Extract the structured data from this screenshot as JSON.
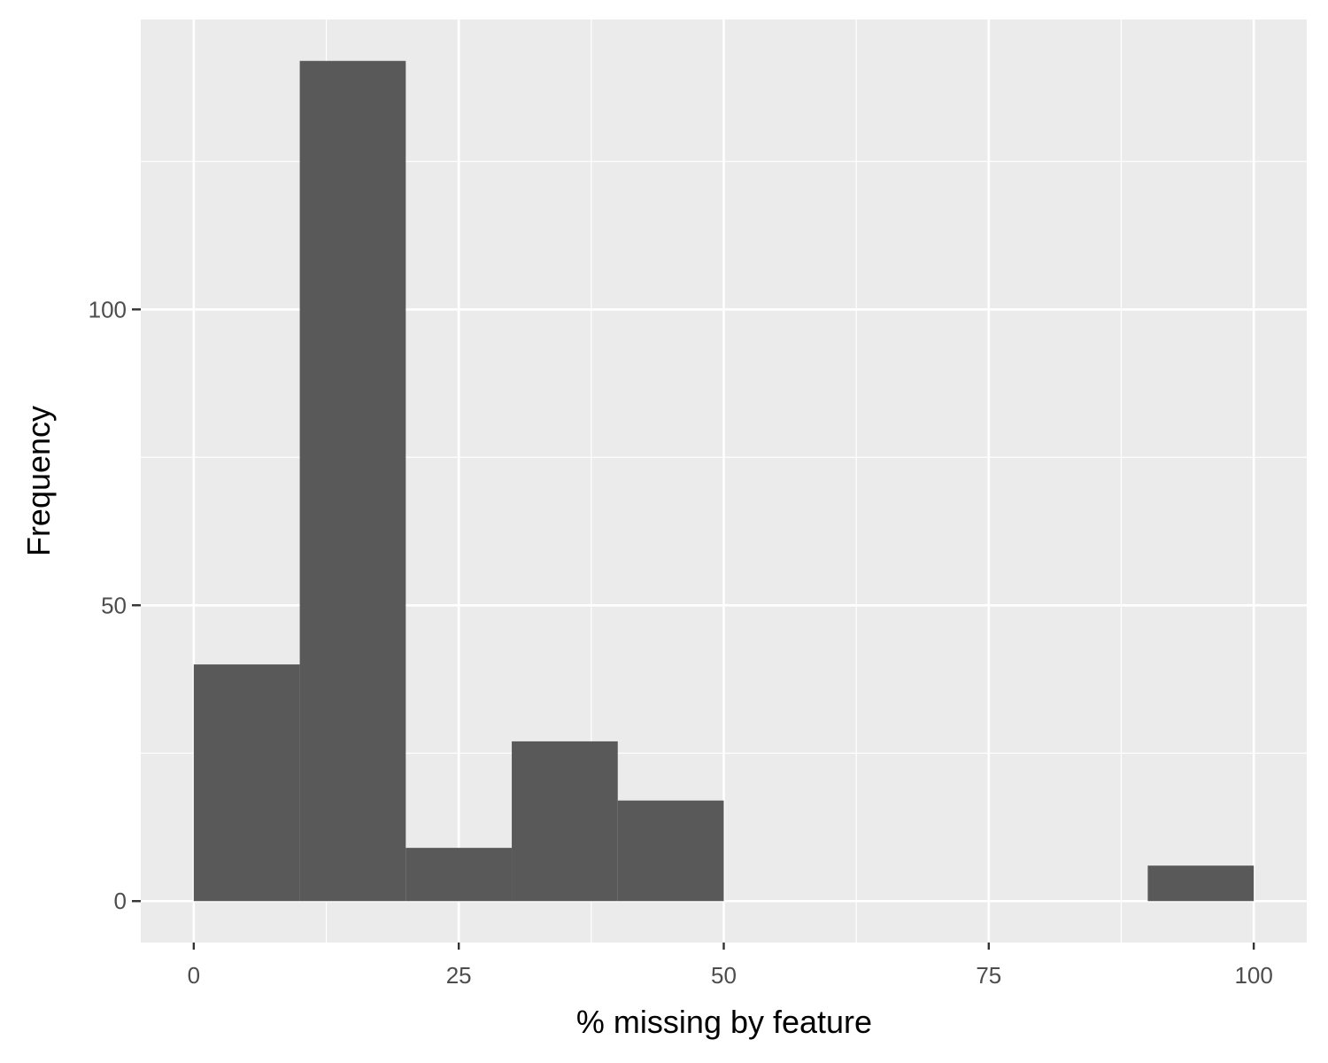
{
  "chart_data": {
    "type": "bar",
    "subtype": "histogram",
    "title": "",
    "xlabel": "% missing by feature",
    "ylabel": "Frequency",
    "bins": [
      {
        "x0": 0,
        "x1": 10,
        "count": 40
      },
      {
        "x0": 10,
        "x1": 20,
        "count": 142
      },
      {
        "x0": 20,
        "x1": 30,
        "count": 9
      },
      {
        "x0": 30,
        "x1": 40,
        "count": 27
      },
      {
        "x0": 40,
        "x1": 50,
        "count": 17
      },
      {
        "x0": 50,
        "x1": 60,
        "count": 0
      },
      {
        "x0": 60,
        "x1": 70,
        "count": 0
      },
      {
        "x0": 70,
        "x1": 80,
        "count": 0
      },
      {
        "x0": 80,
        "x1": 90,
        "count": 0
      },
      {
        "x0": 90,
        "x1": 100,
        "count": 6
      }
    ],
    "xlim": [
      -5,
      105
    ],
    "ylim": [
      -7,
      149
    ],
    "x_ticks": [
      0,
      25,
      50,
      75,
      100
    ],
    "x_minor_ticks": [
      12.5,
      37.5,
      62.5,
      87.5
    ],
    "y_ticks": [
      0,
      50,
      100
    ],
    "y_minor_ticks": [
      25,
      75,
      125
    ],
    "grid": true,
    "colors": {
      "panel_background": "#ebebeb",
      "grid": "#ffffff",
      "bar_fill": "#595959",
      "tick_label": "#4d4d4d",
      "axis_title": "#000000"
    }
  }
}
